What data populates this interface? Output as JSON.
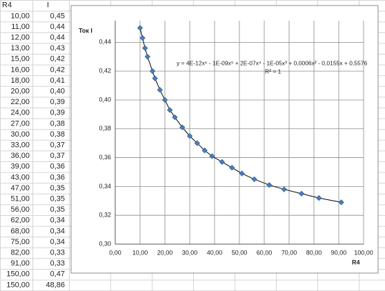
{
  "table": {
    "header": [
      "R4",
      "I"
    ],
    "rows": [
      [
        "10,00",
        "0,45"
      ],
      [
        "11,00",
        "0,44"
      ],
      [
        "12,00",
        "0,44"
      ],
      [
        "13,00",
        "0,43"
      ],
      [
        "15,00",
        "0,42"
      ],
      [
        "16,00",
        "0,42"
      ],
      [
        "18,00",
        "0,41"
      ],
      [
        "20,00",
        "0,40"
      ],
      [
        "22,00",
        "0,39"
      ],
      [
        "24,00",
        "0,39"
      ],
      [
        "27,00",
        "0,38"
      ],
      [
        "30,00",
        "0,38"
      ],
      [
        "33,00",
        "0,37"
      ],
      [
        "36,00",
        "0,37"
      ],
      [
        "39,00",
        "0,36"
      ],
      [
        "43,00",
        "0,36"
      ],
      [
        "47,00",
        "0,35"
      ],
      [
        "51,00",
        "0,35"
      ],
      [
        "56,00",
        "0,35"
      ],
      [
        "62,00",
        "0,34"
      ],
      [
        "68,00",
        "0,34"
      ],
      [
        "75,00",
        "0,34"
      ],
      [
        "82,00",
        "0,33"
      ],
      [
        "91,00",
        "0,33"
      ],
      [
        "150,00",
        "0,47"
      ],
      [
        "150,00",
        "48,86"
      ]
    ]
  },
  "chart_data": {
    "type": "scatter",
    "y_label": "Ток I",
    "x_label": "R4",
    "trendline_equation": "y = 4E-12x⁶ - 1E-09x⁵ + 2E-07x⁴ - 1E-05x³ + 0,0006x² - 0,0155x + 0,5576",
    "r_squared": "R² = 1",
    "x": [
      10,
      11,
      12,
      13,
      15,
      16,
      18,
      20,
      22,
      24,
      27,
      30,
      33,
      36,
      39,
      43,
      47,
      51,
      56,
      62,
      68,
      75,
      82,
      91
    ],
    "series": [
      {
        "color": "#4a7ebb",
        "values": [
          0.45,
          0.443,
          0.436,
          0.43,
          0.42,
          0.415,
          0.407,
          0.4,
          0.393,
          0.388,
          0.381,
          0.375,
          0.37,
          0.365,
          0.361,
          0.357,
          0.353,
          0.349,
          0.345,
          0.341,
          0.338,
          0.335,
          0.332,
          0.329
        ]
      }
    ],
    "trendline": true,
    "xlim": [
      0,
      100
    ],
    "xticks": [
      {
        "value": 0,
        "label": "0,00"
      },
      {
        "value": 10,
        "label": "10,00"
      },
      {
        "value": 20,
        "label": "20,00"
      },
      {
        "value": 30,
        "label": "30,00"
      },
      {
        "value": 40,
        "label": "40,00"
      },
      {
        "value": 50,
        "label": "50,00"
      },
      {
        "value": 60,
        "label": "60,00"
      },
      {
        "value": 70,
        "label": "70,00"
      },
      {
        "value": 80,
        "label": "80,00"
      },
      {
        "value": 90,
        "label": "90,00"
      },
      {
        "value": 100,
        "label": "100,00"
      }
    ],
    "ylim": [
      0.3,
      0.455
    ],
    "yticks": [
      {
        "value": 0.3,
        "label": "0,30"
      },
      {
        "value": 0.32,
        "label": "0,32"
      },
      {
        "value": 0.34,
        "label": "0,34"
      },
      {
        "value": 0.36,
        "label": "0,36"
      },
      {
        "value": 0.38,
        "label": "0,38"
      },
      {
        "value": 0.4,
        "label": "0,40"
      },
      {
        "value": 0.42,
        "label": "0,42"
      },
      {
        "value": 0.44,
        "label": "0,44"
      }
    ],
    "grid": true
  }
}
